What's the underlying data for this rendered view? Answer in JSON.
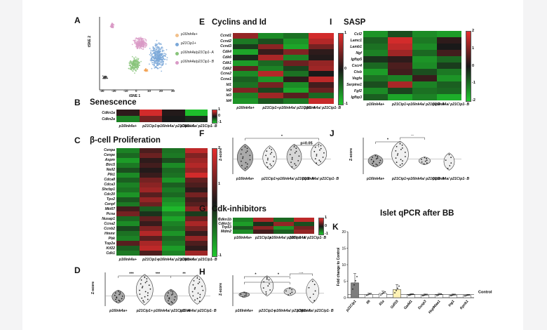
{
  "panels": {
    "A": {
      "letter": "A",
      "xaxis": "tSNE 1",
      "yaxis": "tSNE 2",
      "ticks_x": [
        "-30",
        "-20",
        "-10",
        "0",
        "10",
        "20",
        "30"
      ],
      "legend": [
        {
          "label": "p16Ink4a+",
          "color": "#f2c08a"
        },
        {
          "label": "p21Cip1+",
          "color": "#7aa7d8"
        },
        {
          "label": "p16Ink4a/p21Cip1- A",
          "color": "#88c47a"
        },
        {
          "label": "p16Ink4a/p21Cip1- B",
          "color": "#d99ac6"
        }
      ]
    },
    "B": {
      "letter": "B",
      "title": "Senescence",
      "rows": [
        "Cdkn1a",
        "Cdkn2a"
      ],
      "matrix": [
        [
          0.2,
          1.8,
          0.1,
          -1.9
        ],
        [
          -1.2,
          0.9,
          0.0,
          -0.2
        ]
      ]
    },
    "C": {
      "letter": "C",
      "title": "β-cell Proliferation",
      "rows": [
        "Cenpa",
        "Cenpe",
        "Aspm",
        "Birc5",
        "Neil2",
        "Plk1",
        "Cdca8",
        "Cdca3",
        "Shcbp1",
        "Cdc20",
        "Tpx2",
        "Cenpf",
        "Mki67",
        "Pcna",
        "Nusap1",
        "Ccna2",
        "Ccnb2",
        "Hmmr",
        "Pbk",
        "Top2a",
        "Kif22",
        "Cdk1"
      ],
      "matrix": [
        [
          -1.2,
          0.5,
          -1.0,
          1.6
        ],
        [
          -0.9,
          0.8,
          -1.1,
          1.0
        ],
        [
          -1.5,
          0.2,
          -0.6,
          1.3
        ],
        [
          -1.1,
          0.4,
          -1.3,
          1.5
        ],
        [
          -0.6,
          0.1,
          -0.9,
          1.2
        ],
        [
          -1.3,
          0.3,
          -1.0,
          1.8
        ],
        [
          -0.8,
          0.9,
          -1.4,
          0.7
        ],
        [
          -1.2,
          1.1,
          -0.8,
          0.5
        ],
        [
          -1.0,
          1.3,
          -1.1,
          0.2
        ],
        [
          -1.4,
          0.6,
          -0.9,
          0.9
        ],
        [
          -0.7,
          1.2,
          -1.3,
          0.4
        ],
        [
          -1.1,
          0.8,
          -1.5,
          0.6
        ],
        [
          0.4,
          -0.8,
          -1.8,
          1.1
        ],
        [
          0.9,
          -0.3,
          -1.2,
          -0.4
        ],
        [
          -0.9,
          0.7,
          -1.6,
          0.8
        ],
        [
          -1.3,
          0.3,
          -1.2,
          1.4
        ],
        [
          -0.5,
          1.0,
          -1.0,
          0.9
        ],
        [
          -1.0,
          1.5,
          -1.4,
          0.3
        ],
        [
          -1.2,
          0.6,
          -0.9,
          1.2
        ],
        [
          0.6,
          1.4,
          -1.1,
          0.5
        ],
        [
          -0.8,
          1.6,
          -1.5,
          0.2
        ],
        [
          -1.1,
          0.5,
          -1.2,
          1.3
        ]
      ]
    },
    "D": {
      "letter": "D",
      "ylabel": "Z-score",
      "sig": [
        "***",
        "***",
        "**"
      ]
    },
    "E": {
      "letter": "E",
      "title": "Cyclins and Id",
      "rows": [
        "Ccnd1",
        "Ccnd2",
        "Ccnd3",
        "Cdk4",
        "Cdk6",
        "Cdk1",
        "Cdk2",
        "Ccne2",
        "Ccne1",
        "Id1",
        "Id2",
        "Id3",
        "Id4"
      ],
      "matrix": [
        [
          1.2,
          -1.3,
          -1.0,
          1.8
        ],
        [
          -1.1,
          -0.6,
          -1.4,
          1.5
        ],
        [
          -0.4,
          1.1,
          -1.6,
          0.9
        ],
        [
          -1.6,
          0.3,
          1.0,
          0.2
        ],
        [
          -0.2,
          1.4,
          -1.2,
          0.1
        ],
        [
          -1.5,
          -0.9,
          0.8,
          1.2
        ],
        [
          0.7,
          -1.2,
          -0.5,
          1.3
        ],
        [
          -1.3,
          1.5,
          -1.0,
          0.0
        ],
        [
          -0.8,
          -1.4,
          0.2,
          1.6
        ],
        [
          -1.0,
          0.9,
          -1.3,
          0.4
        ],
        [
          1.0,
          -0.5,
          -1.6,
          0.8
        ],
        [
          -1.2,
          1.3,
          0.6,
          -0.9
        ],
        [
          -1.4,
          -0.7,
          -1.1,
          1.7
        ]
      ]
    },
    "F": {
      "letter": "F",
      "ylabel": "Z-score",
      "sig": [
        "*",
        "p=0.05"
      ]
    },
    "G": {
      "letter": "G",
      "title": "Cdk-inhibitors",
      "rows": [
        "Cdkn1b",
        "Cdkn1c",
        "Trp53",
        "Mdm2"
      ],
      "matrix": [
        [
          -1.2,
          1.4,
          -0.9,
          1.6
        ],
        [
          -1.5,
          -0.3,
          1.2,
          -0.6
        ],
        [
          -0.7,
          1.1,
          -1.4,
          0.9
        ],
        [
          -1.3,
          0.4,
          -0.8,
          1.2
        ]
      ]
    },
    "H": {
      "letter": "H",
      "ylabel": "Z-score",
      "sig": [
        "*",
        "*",
        "*",
        "ns"
      ]
    },
    "I": {
      "letter": "I",
      "title": "SASP",
      "rows": [
        "Ccl2",
        "Lamc1",
        "Lamb1",
        "Ngf",
        "Igfbp5",
        "Cxcr4",
        "Ctsb",
        "Vegfa",
        "Serpine1",
        "Fgf2",
        "Igfbp3"
      ],
      "matrix": [
        [
          -1.4,
          -0.6,
          -1.3,
          -1.5
        ],
        [
          -0.8,
          1.8,
          -1.1,
          0.2
        ],
        [
          -1.0,
          1.6,
          -1.3,
          0.0
        ],
        [
          -1.2,
          1.3,
          -0.9,
          0.4
        ],
        [
          -0.3,
          0.2,
          -1.4,
          -0.9
        ],
        [
          -0.9,
          0.5,
          -1.3,
          -0.4
        ],
        [
          -1.5,
          0.4,
          -0.6,
          -1.1
        ],
        [
          -1.0,
          -1.2,
          0.3,
          -1.4
        ],
        [
          -0.6,
          1.4,
          -1.2,
          -0.8
        ],
        [
          -1.3,
          -0.5,
          -1.0,
          -0.9
        ],
        [
          -0.8,
          -1.6,
          -1.2,
          -1.7
        ]
      ]
    },
    "J": {
      "letter": "J",
      "ylabel": "Z-score",
      "sig": [
        "*",
        "**"
      ]
    },
    "K": {
      "letter": "K",
      "title": "Islet qPCR after BB",
      "ylabel": "Fold change to Control",
      "control_label": "Control",
      "yticks": [
        "0",
        "5",
        "10",
        "15",
        "20"
      ]
    }
  },
  "colscale_ticks": [
    "2",
    "1",
    "0",
    "-1",
    "-2"
  ],
  "group_labels": [
    "p16Ink4a+",
    "p21Cip1+",
    "p16Ink4a/ p21Cip1- A",
    "p16Ink4a/ p21Cip1- B"
  ],
  "chart_data": [
    {
      "type": "bar",
      "title": "Islet qPCR after BB",
      "ylabel": "Fold change to Control",
      "categories": [
        "p21Cip1",
        "Il6",
        "Il1a",
        "Gdf15",
        "Gadd1",
        "Dusp3",
        "Hsp90aa1",
        "Ing1",
        "Kpnb1"
      ],
      "values": [
        4.5,
        1.0,
        1.3,
        2.5,
        0.9,
        0.8,
        0.9,
        0.8,
        0.7
      ],
      "errors": [
        2.8,
        0.4,
        0.7,
        1.5,
        0.3,
        0.3,
        0.4,
        0.3,
        0.3
      ],
      "ylim": [
        0,
        20
      ],
      "reference_line": 1,
      "reference_label": "Control",
      "colors": [
        "#7d7d7d",
        "#ffffff",
        "#ffffff",
        "#fff2b5",
        "#ffffff",
        "#ffffff",
        "#ffffff",
        "#ffffff",
        "#ffffff"
      ]
    }
  ]
}
